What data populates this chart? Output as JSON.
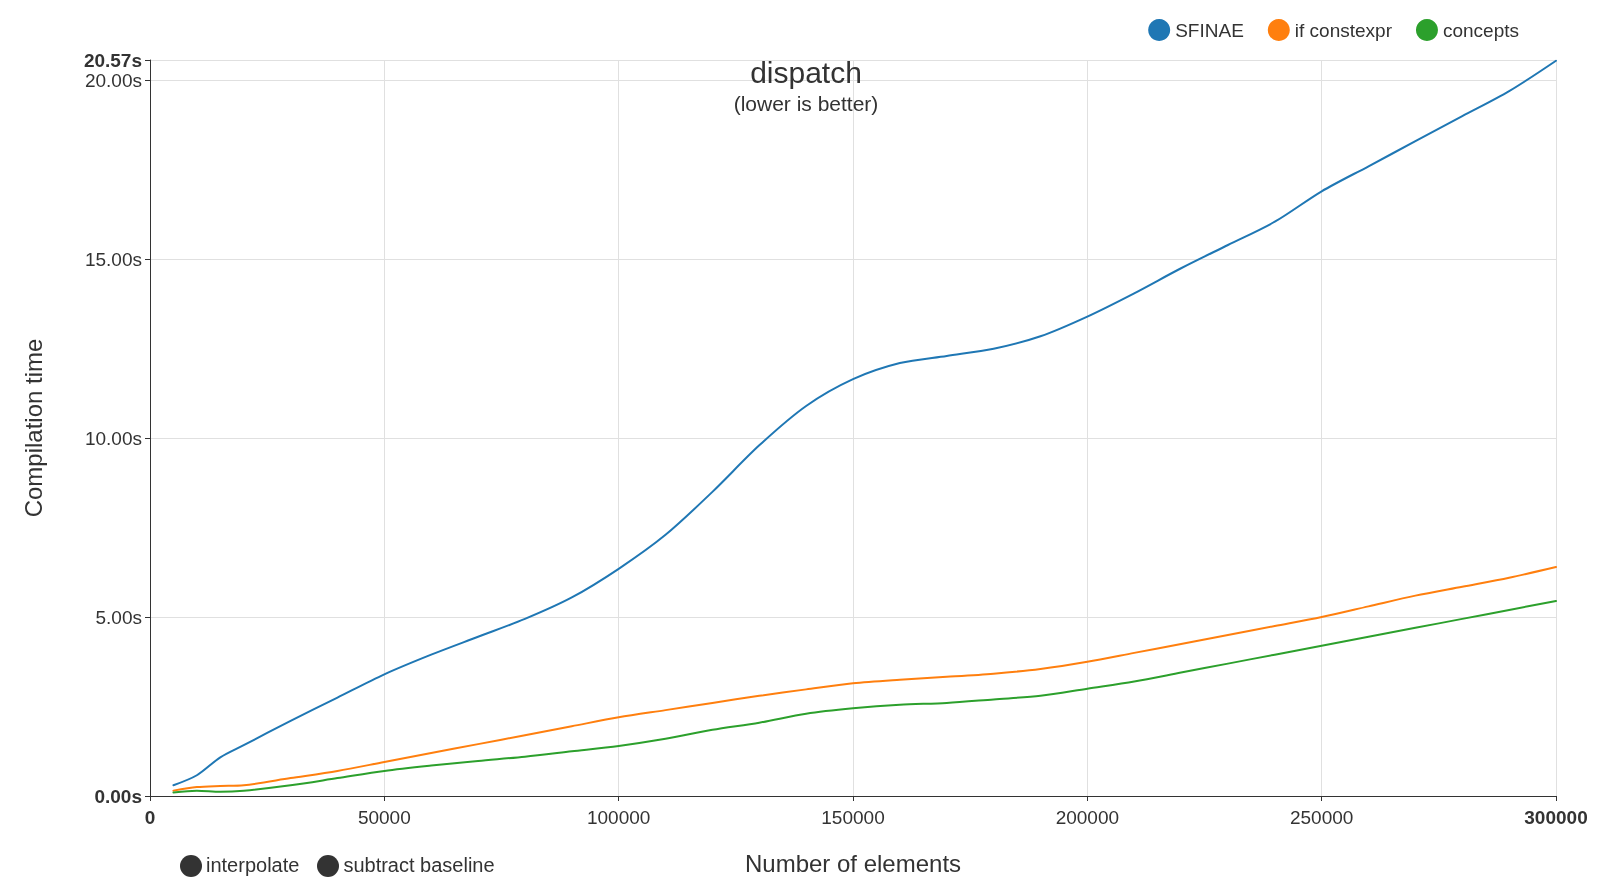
{
  "chart_data": {
    "type": "line",
    "title": "dispatch",
    "subtitle": "(lower is better)",
    "xlabel": "Number of elements",
    "ylabel": "Compilation time",
    "x": [
      5000,
      10000,
      15000,
      20000,
      30000,
      40000,
      50000,
      60000,
      70000,
      80000,
      90000,
      100000,
      110000,
      120000,
      130000,
      140000,
      150000,
      160000,
      170000,
      180000,
      190000,
      200000,
      210000,
      220000,
      230000,
      240000,
      250000,
      260000,
      270000,
      280000,
      290000,
      300000
    ],
    "series": [
      {
        "name": "SFINAE",
        "color": "#1f77b4",
        "values": [
          0.3,
          0.58,
          1.08,
          1.42,
          2.1,
          2.75,
          3.4,
          3.95,
          4.45,
          4.95,
          5.55,
          6.35,
          7.3,
          8.5,
          9.8,
          10.9,
          11.65,
          12.1,
          12.3,
          12.5,
          12.85,
          13.4,
          14.05,
          14.75,
          15.4,
          16.05,
          16.9,
          17.6,
          18.3,
          19.0,
          19.7,
          20.55
        ]
      },
      {
        "name": "if constexpr",
        "color": "#ff7f0e",
        "values": [
          0.15,
          0.25,
          0.28,
          0.3,
          0.5,
          0.7,
          0.95,
          1.2,
          1.45,
          1.7,
          1.95,
          2.2,
          2.4,
          2.6,
          2.8,
          2.98,
          3.15,
          3.25,
          3.33,
          3.42,
          3.55,
          3.75,
          4.0,
          4.25,
          4.5,
          4.75,
          5.0,
          5.3,
          5.6,
          5.85,
          6.1,
          6.4
        ]
      },
      {
        "name": "concepts",
        "color": "#2ca02c",
        "values": [
          0.1,
          0.15,
          0.12,
          0.15,
          0.3,
          0.5,
          0.7,
          0.85,
          0.98,
          1.1,
          1.25,
          1.4,
          1.6,
          1.85,
          2.05,
          2.3,
          2.45,
          2.55,
          2.6,
          2.7,
          2.8,
          3.0,
          3.2,
          3.45,
          3.7,
          3.95,
          4.2,
          4.45,
          4.7,
          4.95,
          5.2,
          5.45
        ]
      }
    ],
    "xlim": [
      0,
      300000
    ],
    "xticks": [
      0,
      50000,
      100000,
      150000,
      200000,
      250000,
      300000
    ],
    "ylim": [
      0,
      20.57
    ],
    "yticks": [
      {
        "value": 0,
        "label": "0.00s"
      },
      {
        "value": 5,
        "label": "5.00s"
      },
      {
        "value": 10,
        "label": "10.00s"
      },
      {
        "value": 15,
        "label": "15.00s"
      },
      {
        "value": 20,
        "label": "20.00s"
      },
      {
        "value": 20.57,
        "label": "20.57s"
      }
    ],
    "grid": true,
    "legend": "top right",
    "marker": "none",
    "line_style": "solid",
    "annotations": [
      "interpolate",
      "subtract baseline"
    ]
  }
}
